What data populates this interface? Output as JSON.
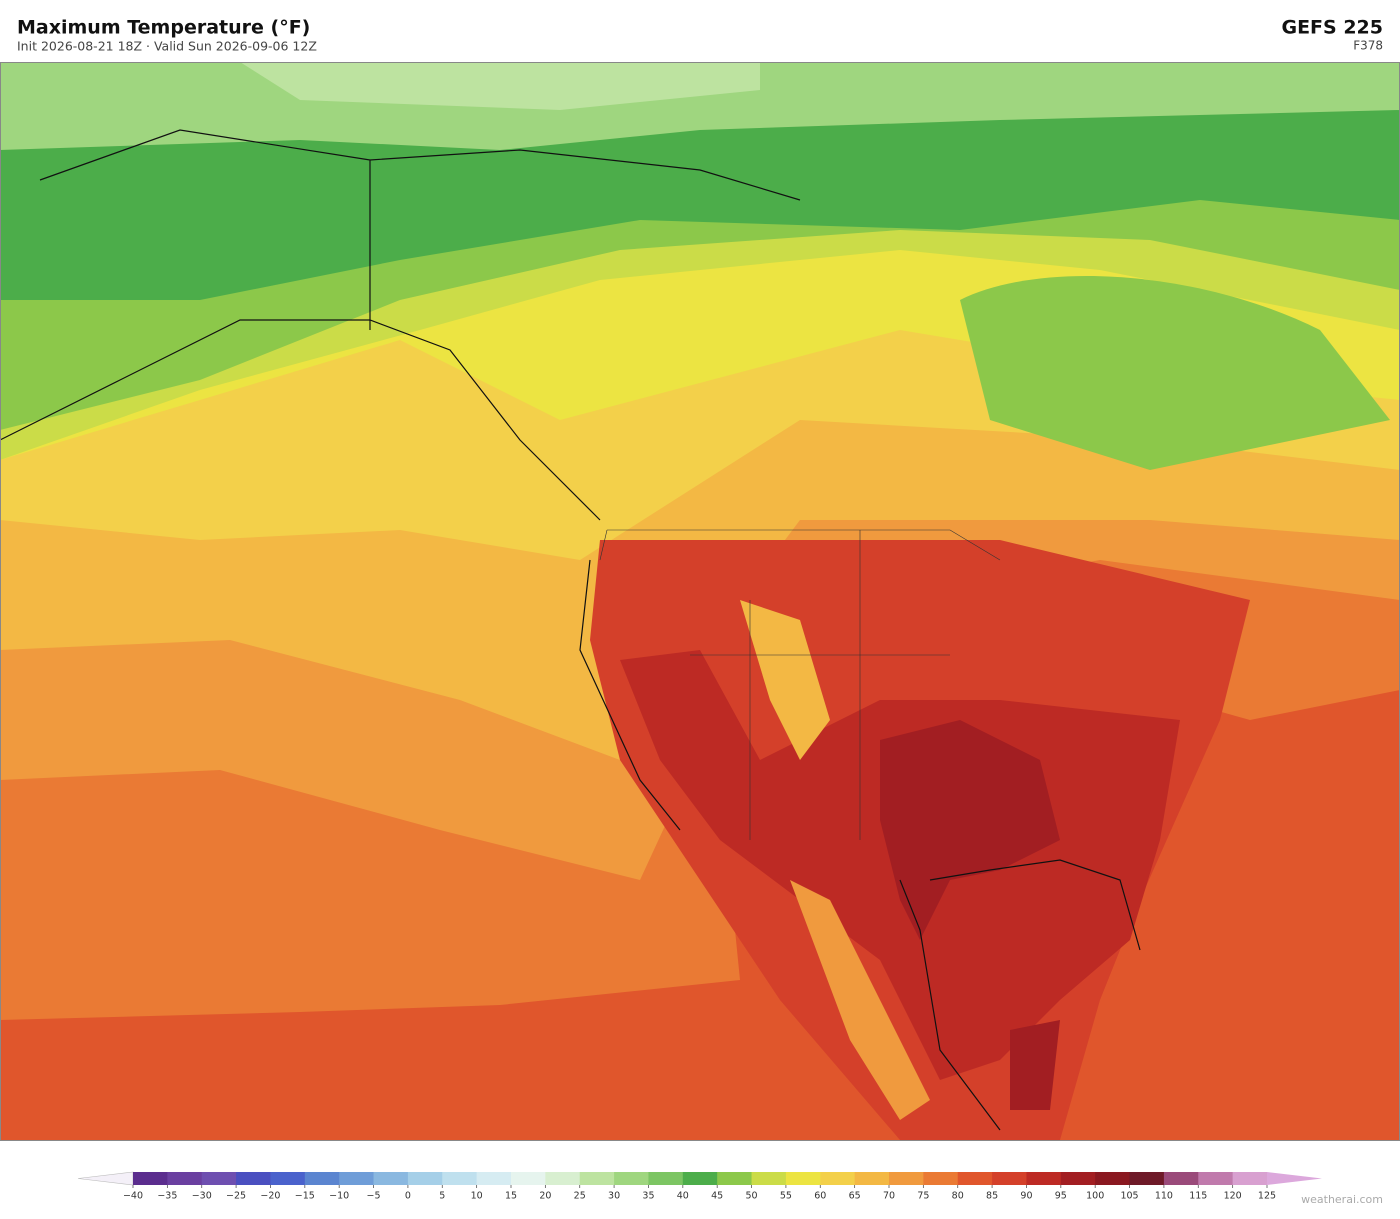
{
  "header": {
    "title": "Maximum Temperature  (°F)",
    "subtitle": "Init 2026-08-21 18Z  ·  Valid Sun 2026-09-06 12Z",
    "model": "GEFS  225",
    "forecast_hour": "F378"
  },
  "colorbar": {
    "ticks": [
      {
        "value": -40,
        "label": "−40"
      },
      {
        "value": -35,
        "label": "−35"
      },
      {
        "value": -30,
        "label": "−30"
      },
      {
        "value": -25,
        "label": "−25"
      },
      {
        "value": -20,
        "label": "−20"
      },
      {
        "value": -15,
        "label": "−15"
      },
      {
        "value": -10,
        "label": "−10"
      },
      {
        "value": -5,
        "label": "−5"
      },
      0,
      5,
      10,
      15,
      20,
      25,
      30,
      35,
      40,
      45,
      50,
      55,
      60,
      65,
      70,
      75,
      80,
      85,
      90,
      95,
      100,
      105,
      110,
      115,
      120,
      125
    ],
    "under_color": "#f4f0f8",
    "colors": [
      "#5b2d8e",
      "#6a3fa0",
      "#6e4fb0",
      "#4a4fc0",
      "#4a62cc",
      "#5b85d0",
      "#6f9dd8",
      "#8ab8e0",
      "#a5cfe8",
      "#bfe0ee",
      "#d6ecf2",
      "#e6f4ee",
      "#d8efd0",
      "#bde3a0",
      "#9fd67f",
      "#7cc563",
      "#4cad4a",
      "#8cc84a",
      "#cbdc48",
      "#ece442",
      "#f3d04a",
      "#f3b844",
      "#f09a3e",
      "#ea7a34",
      "#e0562c",
      "#d4402a",
      "#bd2a24",
      "#a21e22",
      "#8a1820",
      "#6e1a28",
      "#9a4a7a",
      "#c07aac",
      "#d8a0d0"
    ],
    "over_color": "#dca8dc"
  },
  "footer": {
    "watermark": "weatherai.com"
  }
}
